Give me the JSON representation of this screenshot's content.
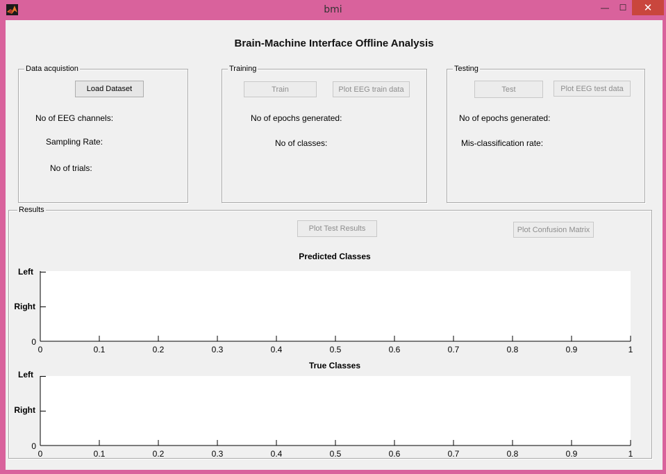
{
  "window": {
    "title": "bmi",
    "icon": "matlab-icon",
    "controls": {
      "minimize": "—",
      "maximize": "☐",
      "close": "✕"
    }
  },
  "main_title": "Brain-Machine Interface Offline Analysis",
  "data_acquisition": {
    "title": "Data acquistion",
    "load_button": "Load Dataset",
    "channels_label": "No of EEG channels:",
    "sampling_label": "Sampling Rate:",
    "trials_label": "No of trials:"
  },
  "training": {
    "title": "Training",
    "train_button": "Train",
    "plot_button": "Plot EEG train data",
    "epochs_label": "No of epochs generated:",
    "classes_label": "No of classes:"
  },
  "testing": {
    "title": "Testing",
    "test_button": "Test",
    "plot_button": "Plot EEG test data",
    "epochs_label": "No of epochs generated:",
    "misclass_label": "Mis-classification rate:"
  },
  "results": {
    "title": "Results",
    "plot_results_button": "Plot Test Results",
    "plot_confusion_button": "Plot Confusion Matrix"
  },
  "chart_data": [
    {
      "type": "line",
      "title": "Predicted Classes",
      "xlabel": "",
      "ylabel": "",
      "xlim": [
        0,
        1
      ],
      "xticks": [
        "0",
        "0.1",
        "0.2",
        "0.3",
        "0.4",
        "0.5",
        "0.6",
        "0.7",
        "0.8",
        "0.9",
        "1"
      ],
      "yticks": [
        "Left",
        "Right",
        "0"
      ],
      "series": [],
      "grid": false
    },
    {
      "type": "line",
      "title": "True Classes",
      "xlabel": "",
      "ylabel": "",
      "xlim": [
        0,
        1
      ],
      "xticks": [
        "0",
        "0.1",
        "0.2",
        "0.3",
        "0.4",
        "0.5",
        "0.6",
        "0.7",
        "0.8",
        "0.9",
        "1"
      ],
      "yticks": [
        "Left",
        "Right",
        "0"
      ],
      "series": [],
      "grid": false
    }
  ],
  "colors": {
    "window_frame": "#d9629c",
    "close_button": "#c9463d",
    "panel_bg": "#f0f0f0"
  }
}
